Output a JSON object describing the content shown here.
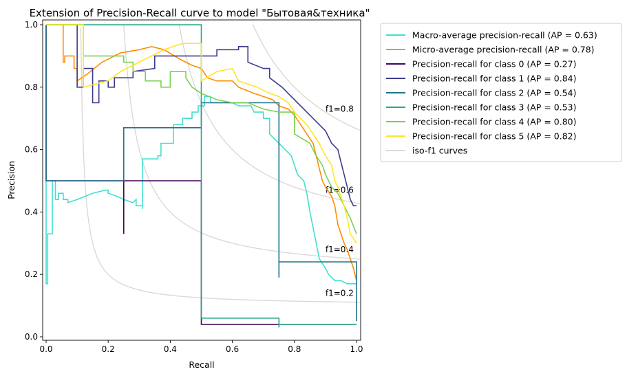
{
  "chart_data": {
    "type": "line",
    "title": "Extension of Precision-Recall curve to model \"Бытовая&техника\"",
    "xlabel": "Recall",
    "ylabel": "Precision",
    "xlim": [
      0.0,
      1.0
    ],
    "ylim": [
      0.0,
      1.05
    ],
    "x_ticks": [
      0.0,
      0.2,
      0.4,
      0.6,
      0.8,
      1.0
    ],
    "x_tick_labels": [
      "0.0",
      "0.2",
      "0.4",
      "0.6",
      "0.8",
      "1.0"
    ],
    "y_ticks": [
      0.0,
      0.2,
      0.4,
      0.6,
      0.8,
      1.0
    ],
    "y_tick_labels": [
      "0.0",
      "0.2",
      "0.4",
      "0.6",
      "0.8",
      "1.0"
    ],
    "grid": false,
    "legend_position": "outside-right",
    "iso_f1": {
      "values": [
        0.2,
        0.4,
        0.6,
        0.8
      ],
      "labels": [
        "f1=0.2",
        "f1=0.4",
        "f1=0.6",
        "f1=0.8"
      ],
      "label_positions": [
        [
          0.9,
          0.14
        ],
        [
          0.9,
          0.28
        ],
        [
          0.9,
          0.47
        ],
        [
          0.9,
          0.73
        ]
      ],
      "color": "#d9d9d9",
      "legend": "iso-f1 curves"
    },
    "series": [
      {
        "name": "Macro-average precision-recall (AP = 0.63)",
        "color": "#40e0d0",
        "points": [
          [
            0.0,
            1.0
          ],
          [
            0.0,
            0.17
          ],
          [
            0.005,
            0.17
          ],
          [
            0.005,
            0.33
          ],
          [
            0.02,
            0.33
          ],
          [
            0.02,
            0.5
          ],
          [
            0.03,
            0.5
          ],
          [
            0.03,
            0.44
          ],
          [
            0.04,
            0.44
          ],
          [
            0.04,
            0.46
          ],
          [
            0.055,
            0.46
          ],
          [
            0.055,
            0.44
          ],
          [
            0.07,
            0.44
          ],
          [
            0.07,
            0.43
          ],
          [
            0.1,
            0.44
          ],
          [
            0.15,
            0.46
          ],
          [
            0.19,
            0.47
          ],
          [
            0.2,
            0.47
          ],
          [
            0.2,
            0.46
          ],
          [
            0.23,
            0.45
          ],
          [
            0.25,
            0.44
          ],
          [
            0.28,
            0.43
          ],
          [
            0.29,
            0.44
          ],
          [
            0.29,
            0.42
          ],
          [
            0.31,
            0.42
          ],
          [
            0.31,
            0.41
          ],
          [
            0.31,
            0.57
          ],
          [
            0.36,
            0.57
          ],
          [
            0.36,
            0.58
          ],
          [
            0.37,
            0.58
          ],
          [
            0.37,
            0.62
          ],
          [
            0.41,
            0.62
          ],
          [
            0.41,
            0.68
          ],
          [
            0.44,
            0.68
          ],
          [
            0.44,
            0.7
          ],
          [
            0.47,
            0.7
          ],
          [
            0.47,
            0.72
          ],
          [
            0.49,
            0.72
          ],
          [
            0.49,
            0.74
          ],
          [
            0.51,
            0.74
          ],
          [
            0.51,
            0.77
          ],
          [
            0.53,
            0.77
          ],
          [
            0.53,
            0.75
          ],
          [
            0.6,
            0.75
          ],
          [
            0.62,
            0.74
          ],
          [
            0.66,
            0.74
          ],
          [
            0.67,
            0.72
          ],
          [
            0.7,
            0.72
          ],
          [
            0.7,
            0.7
          ],
          [
            0.72,
            0.7
          ],
          [
            0.72,
            0.65
          ],
          [
            0.75,
            0.62
          ],
          [
            0.77,
            0.6
          ],
          [
            0.79,
            0.58
          ],
          [
            0.8,
            0.55
          ],
          [
            0.81,
            0.52
          ],
          [
            0.83,
            0.5
          ],
          [
            0.84,
            0.46
          ],
          [
            0.85,
            0.4
          ],
          [
            0.86,
            0.35
          ],
          [
            0.87,
            0.3
          ],
          [
            0.88,
            0.25
          ],
          [
            0.9,
            0.22
          ],
          [
            0.91,
            0.2
          ],
          [
            0.93,
            0.18
          ],
          [
            0.95,
            0.18
          ],
          [
            0.97,
            0.17
          ],
          [
            1.0,
            0.17
          ]
        ]
      },
      {
        "name": "Micro-average precision-recall (AP = 0.78)",
        "color": "#ff8c00",
        "points": [
          [
            0.0,
            1.0
          ],
          [
            0.055,
            1.0
          ],
          [
            0.055,
            0.88
          ],
          [
            0.06,
            0.88
          ],
          [
            0.06,
            0.9
          ],
          [
            0.09,
            0.9
          ],
          [
            0.09,
            0.86
          ],
          [
            0.1,
            0.86
          ],
          [
            0.1,
            0.82
          ],
          [
            0.13,
            0.84
          ],
          [
            0.18,
            0.88
          ],
          [
            0.24,
            0.91
          ],
          [
            0.3,
            0.92
          ],
          [
            0.34,
            0.93
          ],
          [
            0.38,
            0.92
          ],
          [
            0.43,
            0.89
          ],
          [
            0.47,
            0.87
          ],
          [
            0.5,
            0.86
          ],
          [
            0.52,
            0.83
          ],
          [
            0.55,
            0.82
          ],
          [
            0.6,
            0.82
          ],
          [
            0.62,
            0.8
          ],
          [
            0.67,
            0.78
          ],
          [
            0.7,
            0.77
          ],
          [
            0.73,
            0.76
          ],
          [
            0.75,
            0.74
          ],
          [
            0.78,
            0.73
          ],
          [
            0.8,
            0.71
          ],
          [
            0.82,
            0.68
          ],
          [
            0.84,
            0.65
          ],
          [
            0.86,
            0.62
          ],
          [
            0.87,
            0.58
          ],
          [
            0.88,
            0.54
          ],
          [
            0.89,
            0.5
          ],
          [
            0.9,
            0.48
          ],
          [
            0.92,
            0.45
          ],
          [
            0.93,
            0.42
          ],
          [
            0.94,
            0.36
          ],
          [
            0.95,
            0.33
          ],
          [
            0.96,
            0.3
          ],
          [
            0.97,
            0.28
          ],
          [
            0.98,
            0.25
          ],
          [
            0.99,
            0.22
          ],
          [
            1.0,
            0.18
          ]
        ]
      },
      {
        "name": "Precision-recall for class 0 (AP = 0.27)",
        "color": "#440154",
        "points": [
          [
            0.0,
            1.0
          ],
          [
            0.0,
            0.5
          ],
          [
            0.25,
            0.5
          ],
          [
            0.25,
            0.33
          ],
          [
            0.25,
            0.5
          ],
          [
            0.5,
            0.5
          ],
          [
            0.5,
            0.04
          ],
          [
            0.75,
            0.04
          ],
          [
            0.75,
            0.04
          ],
          [
            1.0,
            0.04
          ]
        ]
      },
      {
        "name": "Precision-recall for class 1 (AP = 0.84)",
        "color": "#3b3b8e",
        "points": [
          [
            0.0,
            1.0
          ],
          [
            0.1,
            1.0
          ],
          [
            0.1,
            0.8
          ],
          [
            0.12,
            0.8
          ],
          [
            0.12,
            0.86
          ],
          [
            0.15,
            0.86
          ],
          [
            0.15,
            0.75
          ],
          [
            0.17,
            0.75
          ],
          [
            0.17,
            0.82
          ],
          [
            0.2,
            0.82
          ],
          [
            0.2,
            0.8
          ],
          [
            0.22,
            0.8
          ],
          [
            0.22,
            0.83
          ],
          [
            0.28,
            0.83
          ],
          [
            0.28,
            0.85
          ],
          [
            0.35,
            0.86
          ],
          [
            0.35,
            0.9
          ],
          [
            0.55,
            0.9
          ],
          [
            0.55,
            0.92
          ],
          [
            0.62,
            0.92
          ],
          [
            0.62,
            0.93
          ],
          [
            0.65,
            0.93
          ],
          [
            0.65,
            0.88
          ],
          [
            0.7,
            0.86
          ],
          [
            0.72,
            0.86
          ],
          [
            0.72,
            0.83
          ],
          [
            0.76,
            0.8
          ],
          [
            0.78,
            0.78
          ],
          [
            0.8,
            0.76
          ],
          [
            0.82,
            0.74
          ],
          [
            0.84,
            0.72
          ],
          [
            0.86,
            0.7
          ],
          [
            0.88,
            0.68
          ],
          [
            0.9,
            0.66
          ],
          [
            0.92,
            0.62
          ],
          [
            0.94,
            0.6
          ],
          [
            0.95,
            0.56
          ],
          [
            0.96,
            0.52
          ],
          [
            0.97,
            0.48
          ],
          [
            0.98,
            0.44
          ],
          [
            0.99,
            0.42
          ],
          [
            1.0,
            0.42
          ]
        ]
      },
      {
        "name": "Precision-recall for class 2 (AP = 0.54)",
        "color": "#22728c",
        "points": [
          [
            0.0,
            1.0
          ],
          [
            0.0,
            0.5
          ],
          [
            0.25,
            0.5
          ],
          [
            0.25,
            0.67
          ],
          [
            0.5,
            0.67
          ],
          [
            0.5,
            0.75
          ],
          [
            0.75,
            0.75
          ],
          [
            0.75,
            0.19
          ],
          [
            0.75,
            0.24
          ],
          [
            1.0,
            0.24
          ],
          [
            1.0,
            0.05
          ]
        ]
      },
      {
        "name": "Precision-recall for class 3 (AP = 0.53)",
        "color": "#22a884",
        "points": [
          [
            0.0,
            1.0
          ],
          [
            0.5,
            1.0
          ],
          [
            0.5,
            0.06
          ],
          [
            0.75,
            0.06
          ],
          [
            0.75,
            0.03
          ],
          [
            0.75,
            0.04
          ],
          [
            1.0,
            0.04
          ]
        ]
      },
      {
        "name": "Precision-recall for class 4 (AP = 0.80)",
        "color": "#7ad151",
        "points": [
          [
            0.0,
            1.0
          ],
          [
            0.12,
            1.0
          ],
          [
            0.12,
            0.9
          ],
          [
            0.25,
            0.9
          ],
          [
            0.25,
            0.88
          ],
          [
            0.28,
            0.88
          ],
          [
            0.28,
            0.85
          ],
          [
            0.32,
            0.85
          ],
          [
            0.32,
            0.82
          ],
          [
            0.37,
            0.82
          ],
          [
            0.37,
            0.8
          ],
          [
            0.4,
            0.8
          ],
          [
            0.4,
            0.85
          ],
          [
            0.45,
            0.85
          ],
          [
            0.45,
            0.83
          ],
          [
            0.47,
            0.8
          ],
          [
            0.5,
            0.78
          ],
          [
            0.55,
            0.76
          ],
          [
            0.6,
            0.75
          ],
          [
            0.65,
            0.75
          ],
          [
            0.7,
            0.73
          ],
          [
            0.75,
            0.72
          ],
          [
            0.8,
            0.72
          ],
          [
            0.8,
            0.65
          ],
          [
            0.85,
            0.62
          ],
          [
            0.87,
            0.58
          ],
          [
            0.89,
            0.55
          ],
          [
            0.9,
            0.52
          ],
          [
            0.92,
            0.48
          ],
          [
            0.94,
            0.46
          ],
          [
            0.96,
            0.42
          ],
          [
            0.98,
            0.38
          ],
          [
            1.0,
            0.33
          ]
        ]
      },
      {
        "name": "Precision-recall for class 5 (AP = 0.82)",
        "color": "#fde725",
        "points": [
          [
            0.0,
            1.0
          ],
          [
            0.12,
            1.0
          ],
          [
            0.12,
            0.8
          ],
          [
            0.2,
            0.82
          ],
          [
            0.24,
            0.85
          ],
          [
            0.28,
            0.87
          ],
          [
            0.32,
            0.89
          ],
          [
            0.38,
            0.92
          ],
          [
            0.44,
            0.94
          ],
          [
            0.5,
            0.94
          ],
          [
            0.5,
            0.82
          ],
          [
            0.55,
            0.85
          ],
          [
            0.6,
            0.86
          ],
          [
            0.62,
            0.82
          ],
          [
            0.68,
            0.8
          ],
          [
            0.72,
            0.78
          ],
          [
            0.75,
            0.77
          ],
          [
            0.78,
            0.75
          ],
          [
            0.8,
            0.72
          ],
          [
            0.82,
            0.7
          ],
          [
            0.84,
            0.68
          ],
          [
            0.86,
            0.65
          ],
          [
            0.88,
            0.62
          ],
          [
            0.9,
            0.58
          ],
          [
            0.92,
            0.55
          ],
          [
            0.93,
            0.5
          ],
          [
            0.94,
            0.48
          ],
          [
            0.95,
            0.45
          ],
          [
            0.96,
            0.42
          ],
          [
            0.97,
            0.38
          ],
          [
            0.98,
            0.33
          ],
          [
            1.0,
            0.3
          ]
        ]
      }
    ]
  }
}
